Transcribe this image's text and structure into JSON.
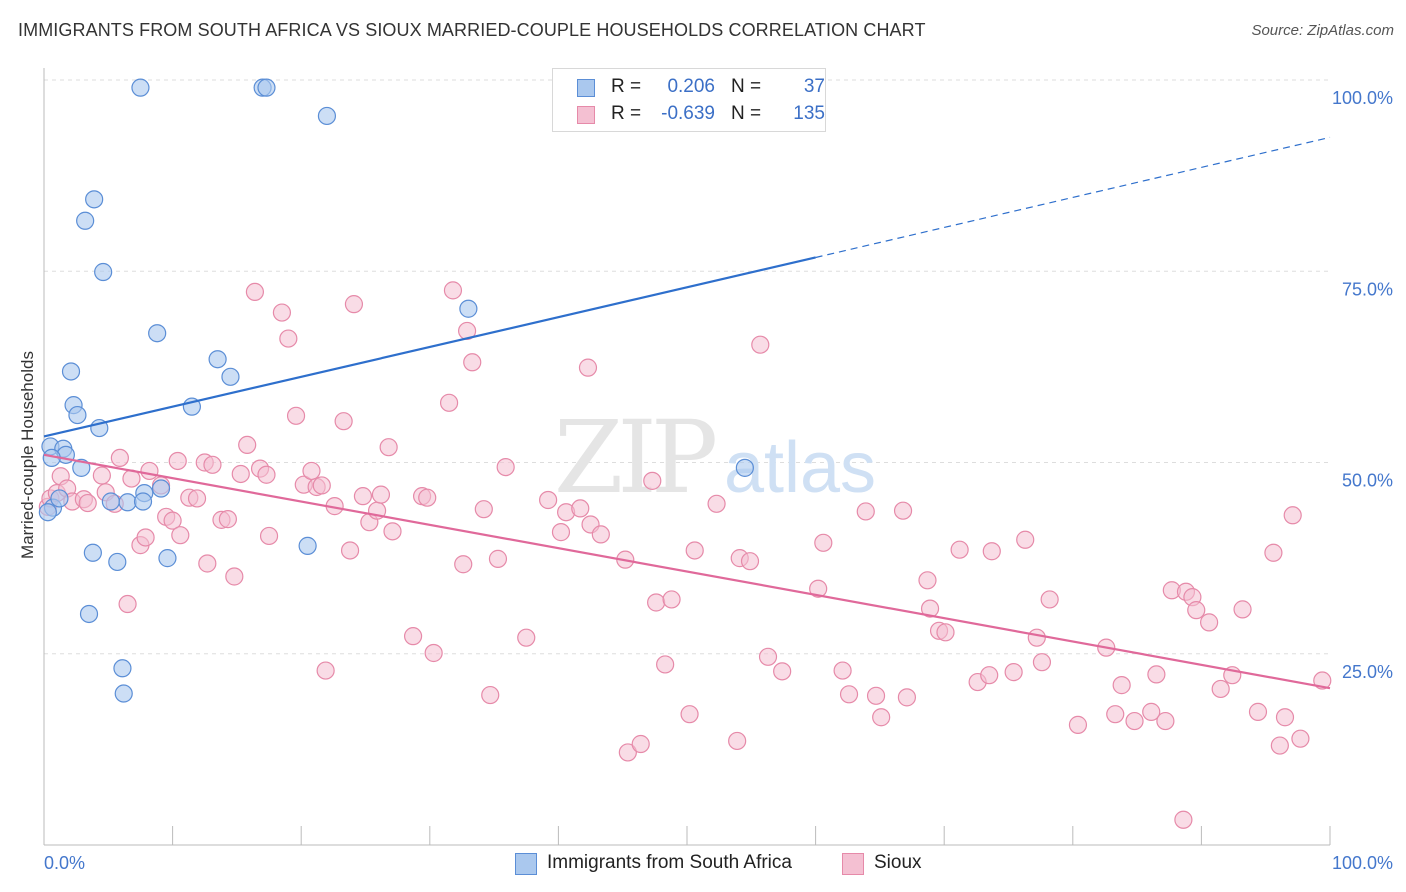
{
  "title": "IMMIGRANTS FROM SOUTH AFRICA VS SIOUX MARRIED-COUPLE HOUSEHOLDS CORRELATION CHART",
  "source": "Source: ZipAtlas.com",
  "watermark": {
    "zip": "ZIP",
    "atlas": "atlas"
  },
  "legend": {
    "rows": [
      {
        "r_label": "R =",
        "r_value": "0.206",
        "n_label": "N =",
        "n_value": "37"
      },
      {
        "r_label": "R =",
        "r_value": "-0.639",
        "n_label": "N =",
        "n_value": "135"
      }
    ]
  },
  "bottom_legend": {
    "series1": "Immigrants from South Africa",
    "series2": "Sioux"
  },
  "colors": {
    "blue_fill": "#aac8ee",
    "blue_stroke": "#5b8ed6",
    "blue_line": "#2e6fcc",
    "pink_fill": "#f4c0d2",
    "pink_stroke": "#e68aa9",
    "pink_line": "#e0699a",
    "tick_text": "#4477cc",
    "grid": "#dddddd"
  },
  "chart_data": {
    "type": "scatter",
    "title": "IMMIGRANTS FROM SOUTH AFRICA VS SIOUX MARRIED-COUPLE HOUSEHOLDS CORRELATION CHART",
    "xlabel": "",
    "ylabel": "Married-couple Households",
    "xlim": [
      0,
      100
    ],
    "ylim": [
      0,
      100
    ],
    "x_tick_labels": [
      "0.0%",
      "100.0%"
    ],
    "y_tick_labels": [
      "25.0%",
      "50.0%",
      "75.0%",
      "100.0%"
    ],
    "y_ticks": [
      25,
      50,
      75,
      100
    ],
    "grid": true,
    "legend_position": "top-center",
    "series": [
      {
        "name": "Immigrants from South Africa",
        "color": "#aac8ee",
        "points": [
          [
            7.5,
            99
          ],
          [
            17,
            99
          ],
          [
            17.3,
            99
          ],
          [
            22,
            95.3
          ],
          [
            3.9,
            84.4
          ],
          [
            3.2,
            81.6
          ],
          [
            4.6,
            74.9
          ],
          [
            8.8,
            66.9
          ],
          [
            13.5,
            63.5
          ],
          [
            14.5,
            61.2
          ],
          [
            33,
            70.1
          ],
          [
            2.1,
            61.9
          ],
          [
            2.3,
            57.5
          ],
          [
            2.6,
            56.2
          ],
          [
            11.5,
            57.3
          ],
          [
            4.3,
            54.5
          ],
          [
            0.5,
            52.1
          ],
          [
            1.5,
            51.8
          ],
          [
            1.7,
            51.0
          ],
          [
            0.6,
            50.6
          ],
          [
            2.9,
            49.3
          ],
          [
            5.2,
            44.9
          ],
          [
            7.8,
            46
          ],
          [
            9.1,
            46.6
          ],
          [
            6.5,
            44.8
          ],
          [
            7.7,
            44.9
          ],
          [
            3.8,
            38.2
          ],
          [
            5.7,
            37
          ],
          [
            9.6,
            37.5
          ],
          [
            20.5,
            39.1
          ],
          [
            3.5,
            30.2
          ],
          [
            6.1,
            23.1
          ],
          [
            6.2,
            19.8
          ],
          [
            54.5,
            49.3
          ],
          [
            0.7,
            44.1
          ],
          [
            1.2,
            45.3
          ],
          [
            0.3,
            43.5
          ]
        ]
      },
      {
        "name": "Sioux",
        "color": "#f4c0d2",
        "points": [
          [
            0.3,
            44.2
          ],
          [
            0.5,
            45.3
          ],
          [
            1.0,
            46
          ],
          [
            1.3,
            48.2
          ],
          [
            1.8,
            46.6
          ],
          [
            2.2,
            44.9
          ],
          [
            3.1,
            45.2
          ],
          [
            3.4,
            44.7
          ],
          [
            4.5,
            48.3
          ],
          [
            4.8,
            46.1
          ],
          [
            5.5,
            44.6
          ],
          [
            5.9,
            50.6
          ],
          [
            6.5,
            31.5
          ],
          [
            6.8,
            47.9
          ],
          [
            7.5,
            39.2
          ],
          [
            7.9,
            40.2
          ],
          [
            8.2,
            48.9
          ],
          [
            9.1,
            47
          ],
          [
            9.5,
            42.9
          ],
          [
            10,
            42.4
          ],
          [
            10.4,
            50.2
          ],
          [
            10.6,
            40.5
          ],
          [
            11.3,
            45.4
          ],
          [
            11.9,
            45.3
          ],
          [
            12.5,
            50
          ],
          [
            12.7,
            36.8
          ],
          [
            13.1,
            49.7
          ],
          [
            13.8,
            42.5
          ],
          [
            14.3,
            42.6
          ],
          [
            14.8,
            35.1
          ],
          [
            15.3,
            48.5
          ],
          [
            15.8,
            52.3
          ],
          [
            16.4,
            72.3
          ],
          [
            16.8,
            49.2
          ],
          [
            17.3,
            48.4
          ],
          [
            17.5,
            40.4
          ],
          [
            18.5,
            69.6
          ],
          [
            19,
            66.2
          ],
          [
            19.6,
            56.1
          ],
          [
            20.2,
            47.1
          ],
          [
            20.8,
            48.9
          ],
          [
            21.2,
            46.8
          ],
          [
            21.6,
            47
          ],
          [
            21.9,
            22.8
          ],
          [
            22.6,
            44.3
          ],
          [
            23.3,
            55.4
          ],
          [
            23.8,
            38.5
          ],
          [
            24.1,
            70.7
          ],
          [
            24.8,
            45.6
          ],
          [
            25.3,
            42.2
          ],
          [
            25.9,
            43.7
          ],
          [
            26.2,
            45.8
          ],
          [
            26.8,
            52
          ],
          [
            27.1,
            41
          ],
          [
            28.7,
            27.3
          ],
          [
            29.4,
            45.6
          ],
          [
            29.8,
            45.4
          ],
          [
            30.3,
            25.1
          ],
          [
            31.5,
            57.8
          ],
          [
            31.8,
            72.5
          ],
          [
            32.6,
            36.7
          ],
          [
            32.9,
            67.2
          ],
          [
            33.3,
            63.1
          ],
          [
            34.2,
            43.9
          ],
          [
            34.7,
            19.6
          ],
          [
            35.3,
            37.4
          ],
          [
            35.9,
            49.4
          ],
          [
            37.5,
            27.1
          ],
          [
            39.2,
            45.1
          ],
          [
            40.2,
            40.9
          ],
          [
            40.6,
            43.5
          ],
          [
            41.7,
            44
          ],
          [
            42.3,
            62.4
          ],
          [
            42.5,
            41.9
          ],
          [
            43.3,
            40.6
          ],
          [
            45.2,
            37.3
          ],
          [
            45.4,
            12.1
          ],
          [
            46.4,
            13.2
          ],
          [
            47.3,
            47.6
          ],
          [
            47.6,
            31.7
          ],
          [
            48.3,
            23.6
          ],
          [
            48.8,
            32.1
          ],
          [
            50.2,
            17.1
          ],
          [
            50.6,
            38.5
          ],
          [
            52.3,
            44.6
          ],
          [
            53.9,
            13.6
          ],
          [
            54.1,
            37.5
          ],
          [
            54.9,
            37.1
          ],
          [
            55.7,
            65.4
          ],
          [
            56.3,
            24.6
          ],
          [
            57.4,
            22.7
          ],
          [
            60.2,
            33.5
          ],
          [
            60.6,
            39.5
          ],
          [
            62.1,
            22.8
          ],
          [
            62.6,
            19.7
          ],
          [
            63.9,
            43.6
          ],
          [
            64.7,
            19.5
          ],
          [
            65.1,
            16.7
          ],
          [
            66.8,
            43.7
          ],
          [
            67.1,
            19.3
          ],
          [
            68.7,
            34.6
          ],
          [
            68.9,
            30.9
          ],
          [
            69.6,
            28
          ],
          [
            70.1,
            27.8
          ],
          [
            71.2,
            38.6
          ],
          [
            72.6,
            21.3
          ],
          [
            73.5,
            22.2
          ],
          [
            75.4,
            22.6
          ],
          [
            76.3,
            39.9
          ],
          [
            77.2,
            27.1
          ],
          [
            77.6,
            23.9
          ],
          [
            78.2,
            32.1
          ],
          [
            80.4,
            15.7
          ],
          [
            82.6,
            25.8
          ],
          [
            83.3,
            17.1
          ],
          [
            83.8,
            20.9
          ],
          [
            84.8,
            16.2
          ],
          [
            86.1,
            17.4
          ],
          [
            86.5,
            22.3
          ],
          [
            87.2,
            16.2
          ],
          [
            87.7,
            33.3
          ],
          [
            88.8,
            33.1
          ],
          [
            89.3,
            32.4
          ],
          [
            89.6,
            30.7
          ],
          [
            90.6,
            29.1
          ],
          [
            91.5,
            20.4
          ],
          [
            92.4,
            22.2
          ],
          [
            93.2,
            30.8
          ],
          [
            94.4,
            17.4
          ],
          [
            95.6,
            38.2
          ],
          [
            96.5,
            16.7
          ],
          [
            96.1,
            13
          ],
          [
            97.1,
            43.1
          ],
          [
            97.7,
            13.9
          ],
          [
            99.4,
            21.5
          ],
          [
            88.6,
            3.3
          ],
          [
            73.7,
            38.4
          ]
        ]
      }
    ],
    "trend_lines": [
      {
        "series": "Immigrants from South Africa",
        "x": [
          0,
          60
        ],
        "y": [
          53.4,
          76.8
        ],
        "extension_x": [
          60,
          100
        ],
        "extension_y": [
          76.8,
          92.5
        ],
        "extension_style": "dashed"
      },
      {
        "series": "Sioux",
        "x": [
          0,
          100
        ],
        "y": [
          51.0,
          20.5
        ]
      }
    ]
  }
}
